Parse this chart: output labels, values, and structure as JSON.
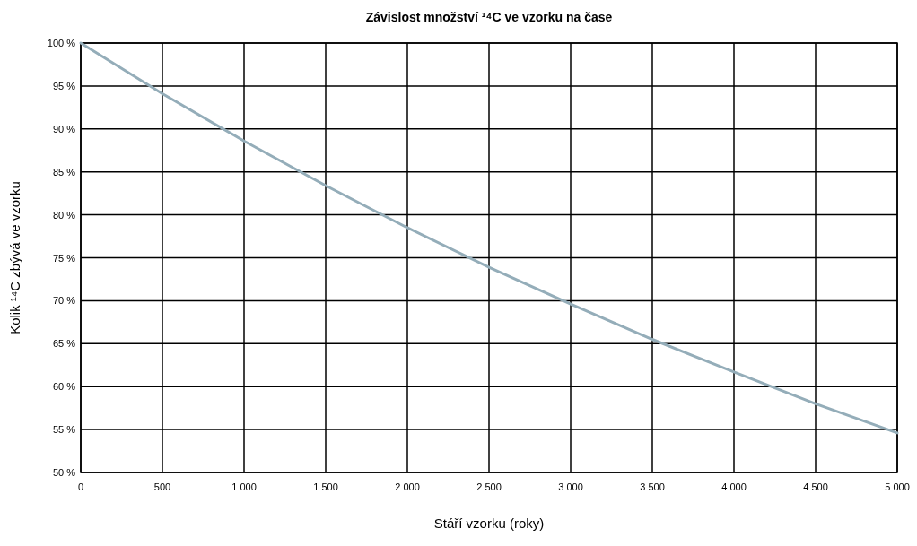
{
  "chart_data": {
    "type": "line",
    "title": "Závislost množství ¹⁴C ve vzorku na čase",
    "xlabel": "Stáří vzorku (roky)",
    "ylabel": "Kolik ¹⁴C zbývá ve vzorku",
    "x": [
      0,
      500,
      1000,
      1500,
      2000,
      2500,
      3000,
      3500,
      4000,
      4500,
      5000
    ],
    "series": [
      {
        "color": "#94adb9",
        "values": [
          100,
          94.1,
          88.6,
          83.4,
          78.5,
          73.9,
          69.6,
          65.5,
          61.7,
          58.0,
          54.6
        ]
      }
    ],
    "xlim": [
      0,
      5000
    ],
    "ylim": [
      50,
      100
    ],
    "xticks": [
      0,
      500,
      {
        "value": 1000,
        "label": "1 000"
      },
      {
        "value": 1500,
        "label": "1 500"
      },
      {
        "value": 2000,
        "label": "2 000"
      },
      {
        "value": 2500,
        "label": "2 500"
      },
      {
        "value": 3000,
        "label": "3 000"
      },
      {
        "value": 3500,
        "label": "3 500"
      },
      {
        "value": 4000,
        "label": "4 000"
      },
      {
        "value": 4500,
        "label": "4 500"
      },
      {
        "value": 5000,
        "label": "5 000"
      }
    ],
    "yticks": [
      {
        "value": 50,
        "label": "50 %"
      },
      {
        "value": 55,
        "label": "55 %"
      },
      {
        "value": 60,
        "label": "60 %"
      },
      {
        "value": 65,
        "label": "65 %"
      },
      {
        "value": 70,
        "label": "70 %"
      },
      {
        "value": 75,
        "label": "75 %"
      },
      {
        "value": 80,
        "label": "80 %"
      },
      {
        "value": 85,
        "label": "85 %"
      },
      {
        "value": 90,
        "label": "90 %"
      },
      {
        "value": 95,
        "label": "95 %"
      },
      {
        "value": 100,
        "label": "100 %"
      }
    ],
    "grid": true,
    "marker": "none",
    "line_style": "solid"
  }
}
